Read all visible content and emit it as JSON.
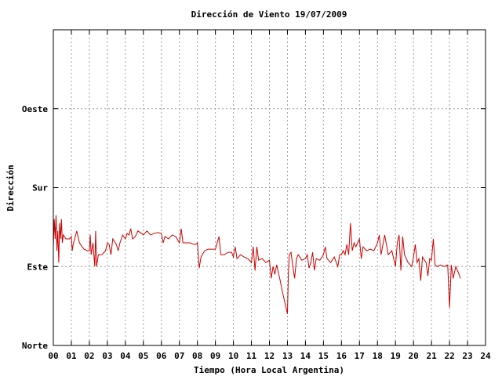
{
  "chart_data": {
    "type": "line",
    "title": "Dirección de Viento 19/07/2009",
    "xlabel": "Tiempo (Hora Local Argentina)",
    "ylabel": "Dirección",
    "xlim": [
      0,
      24
    ],
    "ylim": [
      0,
      4
    ],
    "x_ticks": [
      "00",
      "01",
      "02",
      "03",
      "04",
      "05",
      "06",
      "07",
      "08",
      "09",
      "10",
      "11",
      "12",
      "13",
      "14",
      "15",
      "16",
      "17",
      "18",
      "19",
      "20",
      "21",
      "22",
      "23",
      "24"
    ],
    "y_ticks": [
      {
        "value": 0,
        "label": "Norte"
      },
      {
        "value": 1,
        "label": "Este"
      },
      {
        "value": 2,
        "label": "Sur"
      },
      {
        "value": 3,
        "label": "Oeste"
      }
    ],
    "grid": true,
    "series": [
      {
        "color": "#cc0000",
        "points": [
          [
            0.0,
            1.25
          ],
          [
            0.05,
            1.6
          ],
          [
            0.1,
            1.35
          ],
          [
            0.15,
            1.65
          ],
          [
            0.2,
            1.2
          ],
          [
            0.25,
            1.45
          ],
          [
            0.3,
            1.05
          ],
          [
            0.35,
            1.55
          ],
          [
            0.4,
            1.35
          ],
          [
            0.45,
            1.6
          ],
          [
            0.5,
            1.3
          ],
          [
            0.55,
            1.4
          ],
          [
            0.7,
            1.35
          ],
          [
            0.9,
            1.35
          ],
          [
            1.0,
            1.38
          ],
          [
            1.05,
            1.2
          ],
          [
            1.1,
            1.28
          ],
          [
            1.3,
            1.45
          ],
          [
            1.45,
            1.3
          ],
          [
            1.7,
            1.22
          ],
          [
            1.9,
            1.2
          ],
          [
            2.0,
            1.2
          ],
          [
            2.05,
            1.4
          ],
          [
            2.1,
            1.15
          ],
          [
            2.2,
            1.3
          ],
          [
            2.3,
            1.0
          ],
          [
            2.35,
            1.45
          ],
          [
            2.4,
            1.0
          ],
          [
            2.5,
            1.15
          ],
          [
            2.7,
            1.15
          ],
          [
            2.9,
            1.2
          ],
          [
            3.0,
            1.3
          ],
          [
            3.1,
            1.28
          ],
          [
            3.2,
            1.15
          ],
          [
            3.3,
            1.35
          ],
          [
            3.5,
            1.28
          ],
          [
            3.6,
            1.2
          ],
          [
            3.7,
            1.3
          ],
          [
            3.85,
            1.4
          ],
          [
            4.0,
            1.35
          ],
          [
            4.1,
            1.42
          ],
          [
            4.2,
            1.4
          ],
          [
            4.3,
            1.48
          ],
          [
            4.4,
            1.35
          ],
          [
            4.55,
            1.38
          ],
          [
            4.7,
            1.45
          ],
          [
            4.9,
            1.42
          ],
          [
            5.0,
            1.4
          ],
          [
            5.2,
            1.45
          ],
          [
            5.4,
            1.4
          ],
          [
            5.6,
            1.42
          ],
          [
            5.8,
            1.43
          ],
          [
            6.0,
            1.42
          ],
          [
            6.1,
            1.3
          ],
          [
            6.2,
            1.38
          ],
          [
            6.4,
            1.35
          ],
          [
            6.6,
            1.4
          ],
          [
            6.8,
            1.38
          ],
          [
            7.0,
            1.3
          ],
          [
            7.1,
            1.48
          ],
          [
            7.2,
            1.3
          ],
          [
            7.4,
            1.3
          ],
          [
            7.6,
            1.3
          ],
          [
            7.8,
            1.28
          ],
          [
            7.9,
            1.28
          ],
          [
            8.0,
            1.3
          ],
          [
            8.1,
            0.98
          ],
          [
            8.2,
            1.12
          ],
          [
            8.4,
            1.2
          ],
          [
            8.6,
            1.22
          ],
          [
            8.8,
            1.22
          ],
          [
            9.0,
            1.22
          ],
          [
            9.1,
            1.3
          ],
          [
            9.2,
            1.38
          ],
          [
            9.3,
            1.15
          ],
          [
            9.5,
            1.15
          ],
          [
            9.7,
            1.18
          ],
          [
            9.9,
            1.18
          ],
          [
            10.0,
            1.12
          ],
          [
            10.1,
            1.25
          ],
          [
            10.2,
            1.1
          ],
          [
            10.4,
            1.15
          ],
          [
            10.6,
            1.12
          ],
          [
            10.8,
            1.1
          ],
          [
            11.0,
            1.05
          ],
          [
            11.1,
            1.25
          ],
          [
            11.2,
            0.95
          ],
          [
            11.3,
            1.25
          ],
          [
            11.4,
            1.08
          ],
          [
            11.6,
            1.1
          ],
          [
            11.8,
            1.05
          ],
          [
            12.0,
            1.08
          ],
          [
            12.1,
            0.85
          ],
          [
            12.2,
            1.0
          ],
          [
            12.3,
            0.9
          ],
          [
            12.4,
            1.02
          ],
          [
            12.5,
            0.92
          ],
          [
            12.6,
            0.82
          ],
          [
            12.7,
            0.7
          ],
          [
            12.8,
            0.6
          ],
          [
            12.9,
            0.5
          ],
          [
            13.0,
            0.4
          ],
          [
            13.05,
            0.9
          ],
          [
            13.1,
            1.15
          ],
          [
            13.2,
            1.18
          ],
          [
            13.3,
            1.0
          ],
          [
            13.4,
            0.85
          ],
          [
            13.5,
            1.1
          ],
          [
            13.6,
            1.15
          ],
          [
            13.8,
            1.08
          ],
          [
            14.0,
            1.1
          ],
          [
            14.1,
            1.15
          ],
          [
            14.2,
            0.98
          ],
          [
            14.3,
            1.05
          ],
          [
            14.4,
            1.18
          ],
          [
            14.5,
            0.95
          ],
          [
            14.6,
            1.1
          ],
          [
            14.8,
            1.08
          ],
          [
            15.0,
            1.15
          ],
          [
            15.1,
            1.25
          ],
          [
            15.2,
            1.1
          ],
          [
            15.4,
            1.05
          ],
          [
            15.6,
            1.12
          ],
          [
            15.8,
            1.0
          ],
          [
            15.9,
            1.15
          ],
          [
            16.0,
            1.15
          ],
          [
            16.1,
            1.2
          ],
          [
            16.2,
            1.15
          ],
          [
            16.3,
            1.28
          ],
          [
            16.4,
            1.15
          ],
          [
            16.5,
            1.55
          ],
          [
            16.6,
            1.2
          ],
          [
            16.7,
            1.3
          ],
          [
            16.8,
            1.25
          ],
          [
            16.9,
            1.3
          ],
          [
            17.0,
            1.35
          ],
          [
            17.1,
            1.1
          ],
          [
            17.2,
            1.25
          ],
          [
            17.4,
            1.2
          ],
          [
            17.6,
            1.22
          ],
          [
            17.8,
            1.2
          ],
          [
            18.0,
            1.3
          ],
          [
            18.1,
            1.4
          ],
          [
            18.2,
            1.15
          ],
          [
            18.4,
            1.4
          ],
          [
            18.6,
            1.15
          ],
          [
            18.8,
            1.2
          ],
          [
            19.0,
            1.0
          ],
          [
            19.1,
            1.3
          ],
          [
            19.2,
            1.4
          ],
          [
            19.3,
            0.95
          ],
          [
            19.4,
            1.38
          ],
          [
            19.5,
            1.15
          ],
          [
            19.7,
            1.05
          ],
          [
            19.9,
            1.0
          ],
          [
            20.0,
            1.12
          ],
          [
            20.1,
            1.28
          ],
          [
            20.2,
            1.05
          ],
          [
            20.3,
            1.1
          ],
          [
            20.4,
            0.82
          ],
          [
            20.5,
            1.12
          ],
          [
            20.7,
            1.05
          ],
          [
            20.8,
            0.88
          ],
          [
            20.9,
            1.1
          ],
          [
            21.0,
            1.08
          ],
          [
            21.1,
            1.35
          ],
          [
            21.2,
            1.02
          ],
          [
            21.3,
            1.0
          ],
          [
            21.5,
            1.02
          ],
          [
            21.7,
            1.0
          ],
          [
            21.9,
            1.02
          ],
          [
            22.0,
            0.48
          ],
          [
            22.1,
            1.02
          ],
          [
            22.2,
            0.85
          ],
          [
            22.35,
            1.0
          ],
          [
            22.5,
            0.92
          ],
          [
            22.6,
            0.85
          ]
        ]
      }
    ]
  }
}
